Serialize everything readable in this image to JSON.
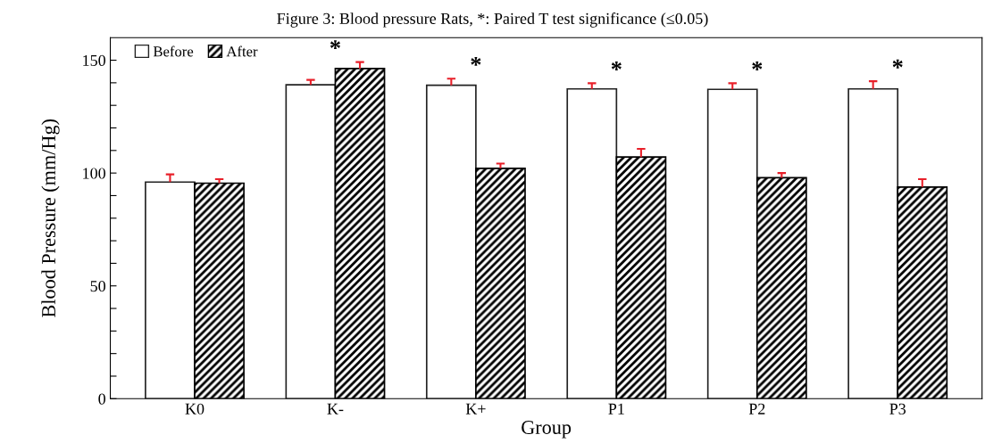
{
  "chart_data": {
    "type": "bar",
    "title": "Figure 3: Blood pressure Rats, *: Paired T test significance (≤0.05)",
    "xlabel": "Group",
    "ylabel": "Blood Pressure (mm/Hg)",
    "categories": [
      "K0",
      "K-",
      "K+",
      "P1",
      "P2",
      "P3"
    ],
    "series": [
      {
        "name": "Before",
        "color": "#ffffff",
        "values": [
          96.0,
          139.1,
          138.9,
          137.3,
          137.1,
          137.3
        ],
        "errors": [
          [
            96.0,
            99.4
          ],
          [
            139.1,
            141.3
          ],
          [
            138.9,
            141.8
          ],
          [
            137.3,
            139.8
          ],
          [
            137.1,
            139.8
          ],
          [
            137.3,
            140.7
          ]
        ]
      },
      {
        "name": "After",
        "color": "#000000",
        "values": [
          95.5,
          146.3,
          102.1,
          107.1,
          97.9,
          93.8
        ],
        "errors": [
          [
            95.5,
            97.3
          ],
          [
            146.3,
            149.2
          ],
          [
            102.1,
            104.2
          ],
          [
            107.1,
            110.7
          ],
          [
            97.9,
            100.0
          ],
          [
            93.8,
            97.3
          ]
        ]
      }
    ],
    "ylim": [
      0,
      160
    ],
    "yticks": [
      0,
      {
        "value": 10,
        "label": null
      },
      {
        "value": 20,
        "label": null
      },
      {
        "value": 30,
        "label": null
      },
      {
        "value": 40,
        "label": null
      },
      50,
      {
        "value": 60,
        "label": null
      },
      {
        "value": 70,
        "label": null
      },
      {
        "value": 80,
        "label": null
      },
      {
        "value": 90,
        "label": null
      },
      100,
      {
        "value": 110,
        "label": null
      },
      {
        "value": 120,
        "label": null
      },
      {
        "value": 130,
        "label": null
      },
      {
        "value": 140,
        "label": null
      },
      150
    ],
    "annotations": [
      "*",
      "*",
      "*",
      "*",
      "*"
    ],
    "legend": "top left",
    "grid": false
  }
}
